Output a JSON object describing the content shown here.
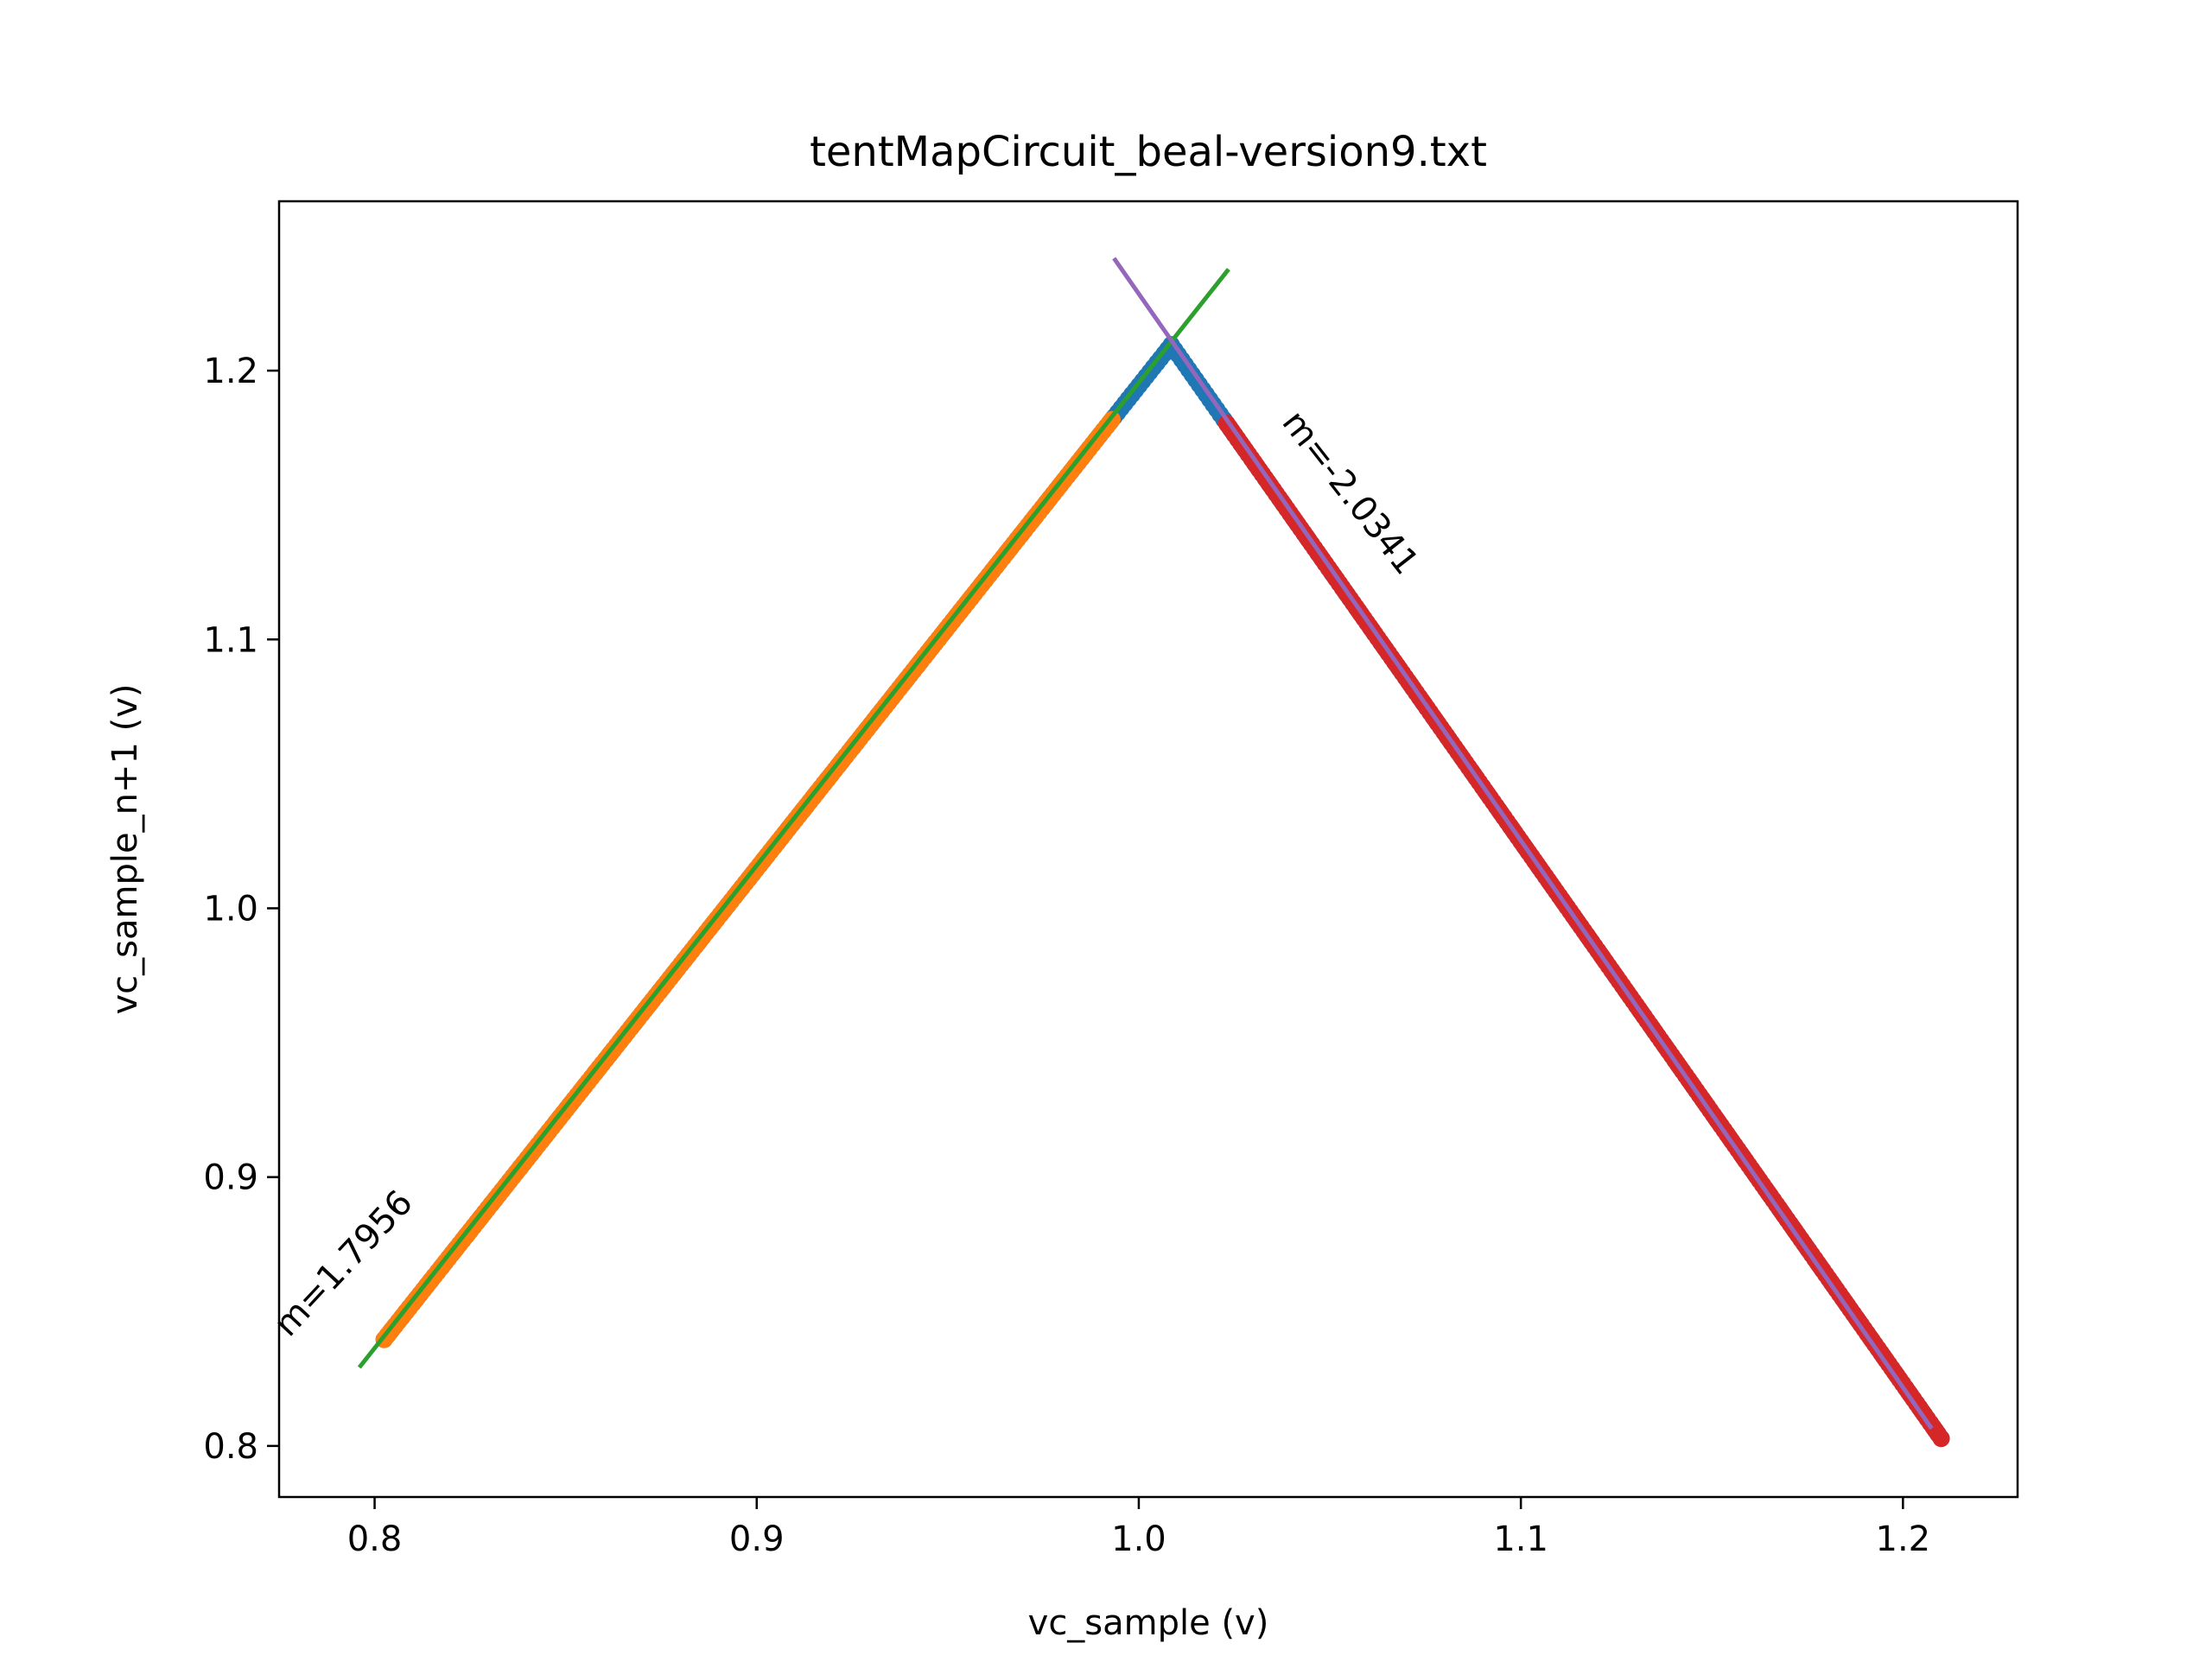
{
  "chart_data": {
    "type": "scatter",
    "title": "tentMapCircuit_beal-version9.txt",
    "xlabel": "vc_sample (v)",
    "ylabel": "vc_sample_n+1 (v)",
    "xlim": [
      0.775,
      1.23
    ],
    "ylim": [
      0.781,
      1.263
    ],
    "xticks": [
      0.8,
      0.9,
      1.0,
      1.1,
      1.2
    ],
    "yticks": [
      0.8,
      0.9,
      1.0,
      1.1,
      1.2
    ],
    "tick_labels_x": [
      "0.8",
      "0.9",
      "1.0",
      "1.1",
      "1.2"
    ],
    "tick_labels_y": [
      "0.8",
      "0.9",
      "1.0",
      "1.1",
      "1.2"
    ],
    "grid": false,
    "legend": "none",
    "series": [
      {
        "kind": "scatter",
        "color": "#1f77b4",
        "x_range": [
          0.8025,
          1.21
        ],
        "segments": [
          {
            "x": [
              0.8025,
              1.0085
            ],
            "y_at_ends": [
              0.8396,
              1.2096
            ]
          },
          {
            "x": [
              1.0085,
              1.21
            ],
            "y_at_ends": [
              1.2096,
              0.8028
            ]
          }
        ]
      },
      {
        "kind": "scatter",
        "color": "#ff7f0e",
        "points_along": {
          "x": [
            0.8025,
            0.993
          ],
          "y_at_ends": [
            0.8396,
            1.1818
          ]
        }
      },
      {
        "kind": "scatter",
        "color": "#d62728",
        "points_along": {
          "x": [
            1.023,
            1.21
          ],
          "y_at_ends": [
            1.1804,
            0.8028
          ]
        }
      },
      {
        "kind": "line",
        "color": "#2ca02c",
        "x": [
          0.796,
          1.0235
        ],
        "y": [
          0.8292,
          1.2377
        ]
      },
      {
        "kind": "line",
        "color": "#9467bd",
        "x": [
          0.9935,
          1.2075
        ],
        "y": [
          1.2418,
          0.8065
        ]
      }
    ],
    "annotations": [
      {
        "text": "m=1.7956",
        "x": 0.794,
        "y": 0.865,
        "rotation_deg": -47
      },
      {
        "text": "m=-2.0341",
        "x": 1.053,
        "y": 1.152,
        "rotation_deg": 52
      }
    ]
  }
}
